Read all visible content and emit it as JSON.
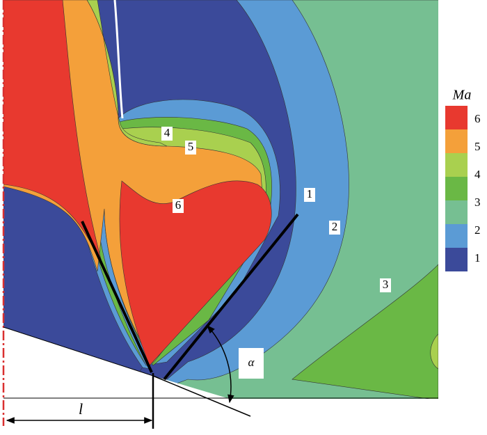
{
  "figure": {
    "contour_labels": [
      "4",
      "5",
      "6",
      "1",
      "2",
      "3"
    ],
    "legend": {
      "title": "Ma",
      "labels": [
        "6",
        "5",
        "4",
        "3",
        "2",
        "1"
      ]
    },
    "annotations": {
      "angle": "α",
      "length": "l"
    }
  }
}
